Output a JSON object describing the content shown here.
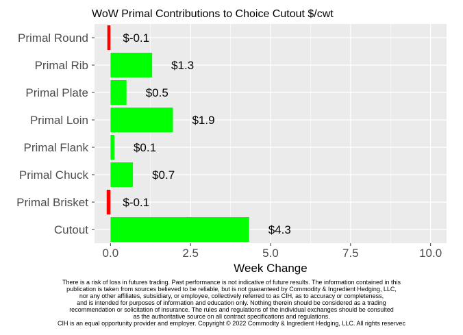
{
  "chart_data": {
    "type": "bar",
    "orientation": "horizontal",
    "title": "WoW Primal Contributions to Choice Cutout $/cwt",
    "xlabel": "Week Change",
    "ylabel": "",
    "categories": [
      "Primal Round",
      "Primal Rib",
      "Primal Plate",
      "Primal Loin",
      "Primal Flank",
      "Primal Chuck",
      "Primal Brisket",
      "Cutout"
    ],
    "values": [
      -0.1,
      1.3,
      0.5,
      1.9,
      0.1,
      0.7,
      -0.1,
      4.3
    ],
    "bar_values_precise": [
      -0.1,
      1.3,
      0.5,
      1.95,
      0.12,
      0.7,
      -0.12,
      4.33
    ],
    "labels": [
      "$-0.1",
      "$1.3",
      "$0.5",
      "$1.9",
      "$0.1",
      "$0.7",
      "$-0.1",
      "$4.3"
    ],
    "xlim": [
      -0.5,
      10.5
    ],
    "xticks": [
      0.0,
      2.5,
      5.0,
      7.5,
      10.0
    ],
    "xtick_labels": [
      "0.0",
      "2.5",
      "5.0",
      "7.5",
      "10.0"
    ],
    "grid": true,
    "legend": "none",
    "colors": {
      "positive": "#00ff00",
      "negative": "#ff0000",
      "panel": "#ebebeb",
      "grid": "#ffffff"
    }
  },
  "disclaimer_lines": [
    "There is a risk of loss in futures trading. Past performance is not indicative of future results. The information contained in this",
    "publication is taken from sources believed to be reliable, but is not guaranteed by Commodity & Ingredient Hedging, LLC,",
    "nor any other affiliates, subsidiary, or employee, collectively referred to as CIH, as to accuracy or completeness,",
    "and is intended for purposes of information and education only. Nothing therein should be considered as a trading",
    "recommendation or solicitation of insurance. The rules and regulations of the individual exchanges should be consulted",
    "as the authoritative source on all contract specifications and regulations.",
    "CIH is an equal opportunity provider and employer. Copyright © 2022 Commodity & Ingredient Hedging, LLC. All rights reservec"
  ]
}
